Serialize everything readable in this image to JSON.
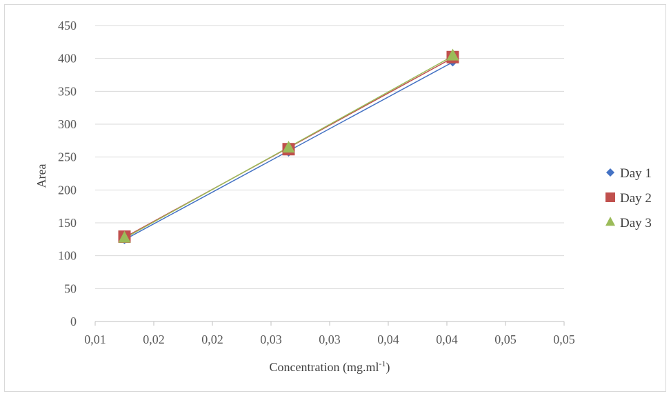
{
  "chart_data": {
    "type": "scatter",
    "title": "",
    "xlabel": "Concentration (mg.ml",
    "xlabel_sup": "-1",
    "xlabel_end": ")",
    "ylabel": "Area",
    "xlim": [
      0.01,
      0.05
    ],
    "ylim": [
      0,
      450
    ],
    "x_ticks": [
      0.01,
      0.015,
      0.02,
      0.025,
      0.03,
      0.035,
      0.04,
      0.045,
      0.05
    ],
    "x_tick_labels": [
      "0,01",
      "0,02",
      "0,02",
      "0,03",
      "0,03",
      "0,04",
      "0,04",
      "0,05",
      "0,05"
    ],
    "y_ticks": [
      0,
      50,
      100,
      150,
      200,
      250,
      300,
      350,
      400,
      450
    ],
    "y_tick_labels": [
      "0",
      "50",
      "100",
      "150",
      "200",
      "250",
      "300",
      "350",
      "400",
      "450"
    ],
    "grid": true,
    "legend_position": "right",
    "trendline": true,
    "series": [
      {
        "name": "Day 1",
        "marker": "diamond",
        "color": "#4472c4",
        "x": [
          0.0125,
          0.0265,
          0.0405
        ],
        "y": [
          125,
          258,
          395
        ]
      },
      {
        "name": "Day 2",
        "marker": "square",
        "color": "#c0504d",
        "x": [
          0.0125,
          0.0265,
          0.0405
        ],
        "y": [
          129,
          262,
          402
        ]
      },
      {
        "name": "Day 3",
        "marker": "triangle",
        "color": "#9bbb59",
        "x": [
          0.0125,
          0.0265,
          0.0405
        ],
        "y": [
          127,
          264,
          404
        ]
      }
    ]
  }
}
